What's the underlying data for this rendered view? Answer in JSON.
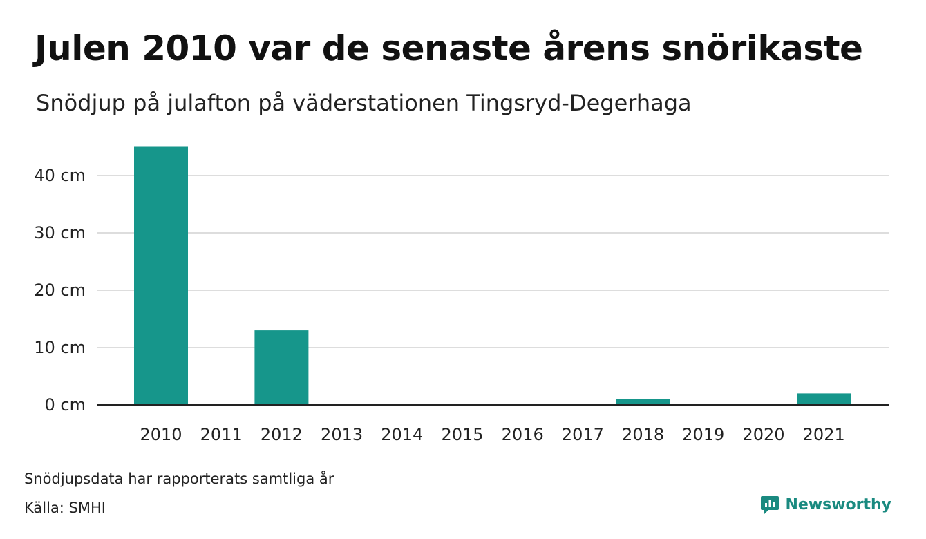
{
  "title": "Julen 2010 var de senaste årens snörikaste",
  "subtitle": "Snödjup på julafton på väderstationen Tingsryd-Degerhaga",
  "note": "Snödjupsdata har rapporterats samtliga år",
  "source": "Källa: SMHI",
  "brand": {
    "name": "Newsworthy",
    "icon": "newsworthy-logo-icon",
    "color": "#1a8a80"
  },
  "colors": {
    "bar": "#16968b",
    "grid": "#dddddd",
    "baseline": "#222222"
  },
  "chart_data": {
    "type": "bar",
    "categories": [
      "2010",
      "2011",
      "2012",
      "2013",
      "2014",
      "2015",
      "2016",
      "2017",
      "2018",
      "2019",
      "2020",
      "2021"
    ],
    "values": [
      45,
      0,
      13,
      0,
      0,
      0,
      0,
      0,
      1,
      0,
      0,
      2
    ],
    "yticks": [
      0,
      10,
      20,
      30,
      40
    ],
    "ytick_labels": [
      "0 cm",
      "10 cm",
      "20 cm",
      "30 cm",
      "40 cm"
    ],
    "ylim": [
      0,
      45
    ],
    "xlabel": "",
    "ylabel": "",
    "grid": true,
    "legend": false
  }
}
